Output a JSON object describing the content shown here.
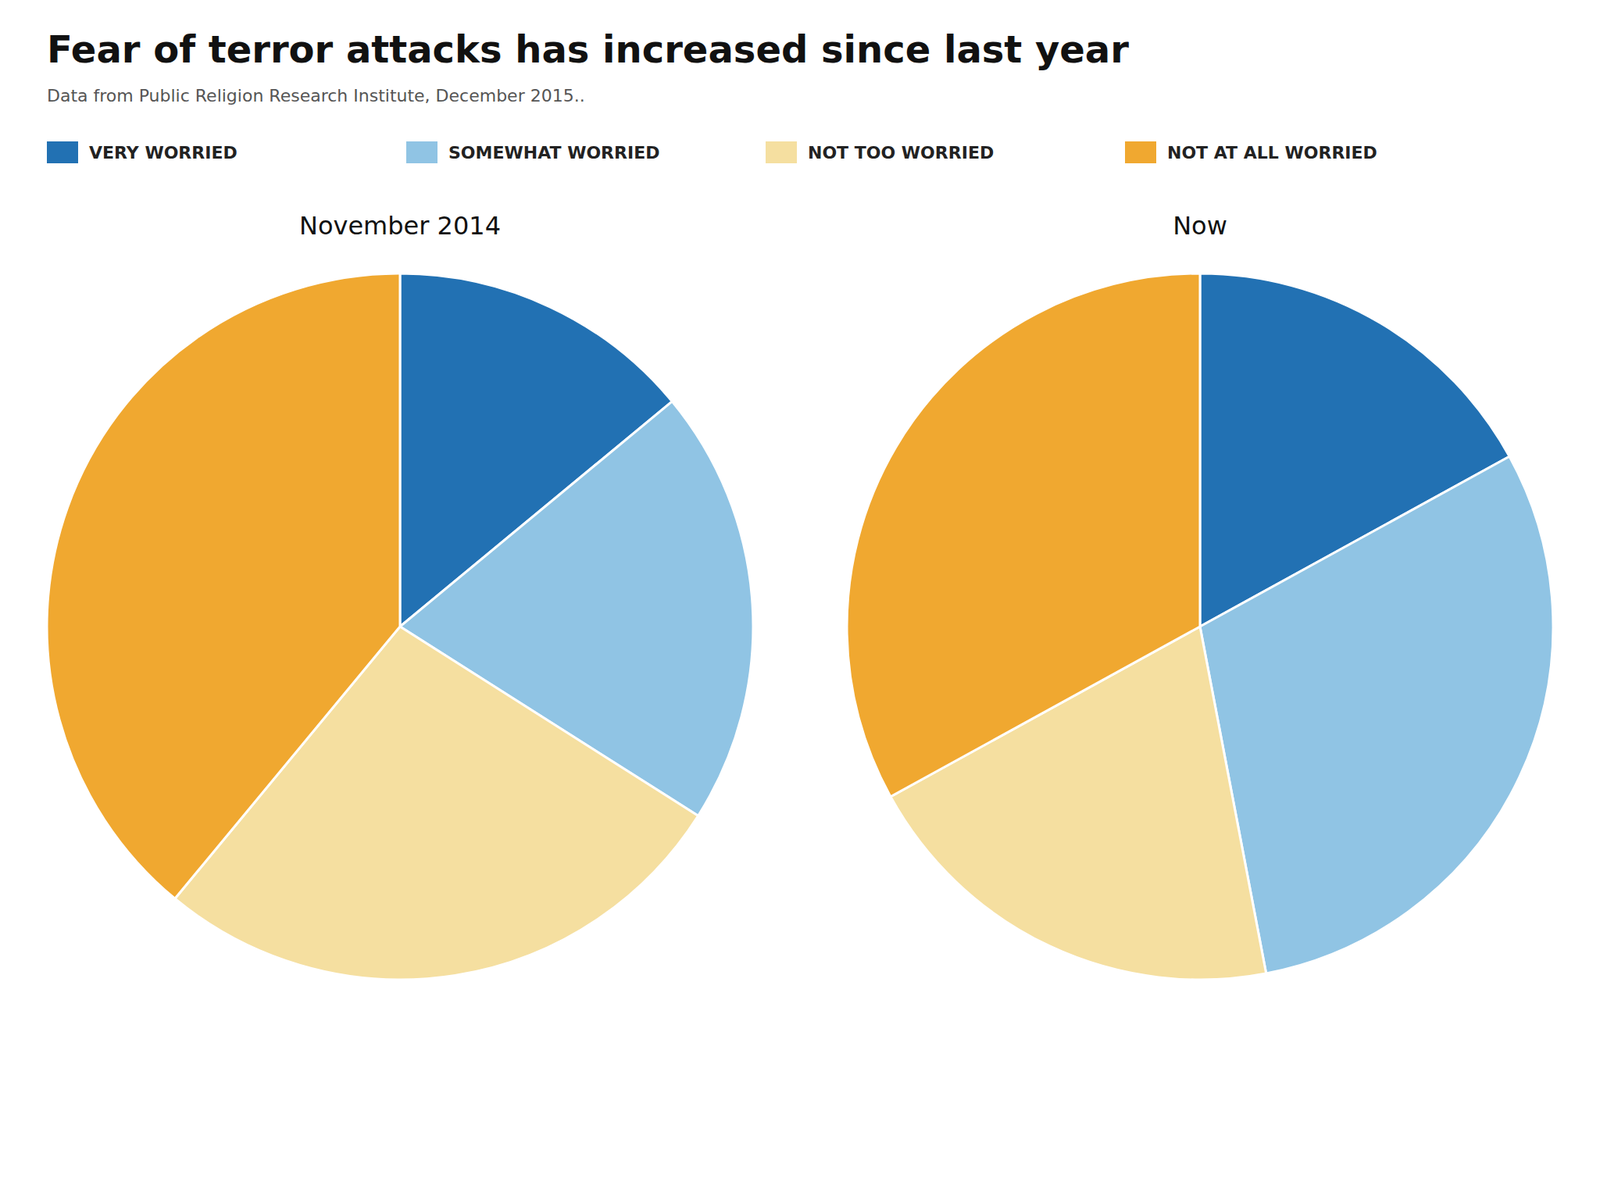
{
  "title": "Fear of terror attacks has increased since last year",
  "subtitle": "Data from Public Religion Research Institute, December 2015..",
  "chart_data": [
    {
      "type": "pie",
      "title": "November 2014",
      "categories": [
        "VERY WORRIED",
        "SOMEWHAT WORRIED",
        "NOT TOO WORRIED",
        "NOT AT ALL WORRIED"
      ],
      "values": [
        14,
        20,
        27,
        39
      ],
      "colors": [
        "#2271b3",
        "#90c4e4",
        "#f5dfa0",
        "#f0a830"
      ],
      "legend": "top"
    },
    {
      "type": "pie",
      "title": "Now",
      "categories": [
        "VERY WORRIED",
        "SOMEWHAT WORRIED",
        "NOT TOO WORRIED",
        "NOT AT ALL WORRIED"
      ],
      "values": [
        17,
        30,
        20,
        33
      ],
      "colors": [
        "#2271b3",
        "#90c4e4",
        "#f5dfa0",
        "#f0a830"
      ],
      "legend": "top"
    }
  ]
}
